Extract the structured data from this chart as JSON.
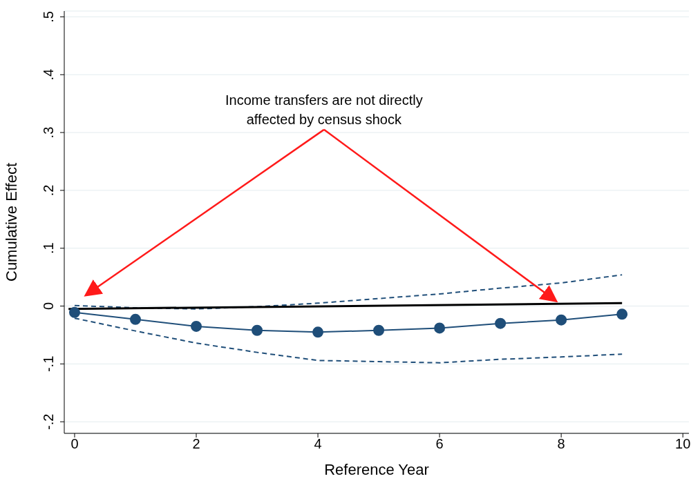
{
  "chart_data": {
    "type": "line",
    "xlabel": "Reference Year",
    "ylabel": "Cumulative Effect",
    "annotations": [
      "Income transfers are not directly\naffected by census shock"
    ],
    "x": [
      0,
      1,
      2,
      3,
      4,
      5,
      6,
      7,
      8,
      9
    ],
    "series": [
      {
        "color": "#1f4e79",
        "values": [
          -0.011,
          -0.023,
          -0.035,
          -0.042,
          -0.045,
          -0.042,
          -0.038,
          -0.03,
          -0.024,
          -0.014
        ],
        "marker": "circle",
        "line_style": "solid"
      },
      {
        "color": "#1f4e79",
        "values": [
          0.001,
          -0.003,
          -0.005,
          -0.001,
          0.005,
          0.013,
          0.021,
          0.031,
          0.04,
          0.054
        ],
        "marker": "none",
        "line_style": "dashed"
      },
      {
        "color": "#1f4e79",
        "values": [
          -0.021,
          -0.043,
          -0.064,
          -0.08,
          -0.094,
          -0.096,
          -0.098,
          -0.092,
          -0.088,
          -0.083
        ],
        "marker": "none",
        "line_style": "dashed"
      },
      {
        "color": "#000000",
        "x": [
          -0.1,
          9
        ],
        "values": [
          -0.005,
          0.005
        ],
        "marker": "none",
        "line_style": "solid"
      }
    ],
    "xlim": [
      -0.17,
      10.1
    ],
    "xticks": [
      0,
      2,
      4,
      6,
      8,
      10
    ],
    "ylim": [
      -0.22,
      0.51
    ],
    "yticks": [
      {
        "value": -0.2,
        "label": "-.2"
      },
      {
        "value": -0.1,
        "label": "-.1"
      },
      0,
      {
        "value": 0.1,
        "label": ".1"
      },
      {
        "value": 0.2,
        "label": ".2"
      },
      {
        "value": 0.3,
        "label": ".3"
      },
      {
        "value": 0.4,
        "label": ".4"
      },
      {
        "value": 0.5,
        "label": ".5"
      }
    ],
    "grid": "y"
  }
}
